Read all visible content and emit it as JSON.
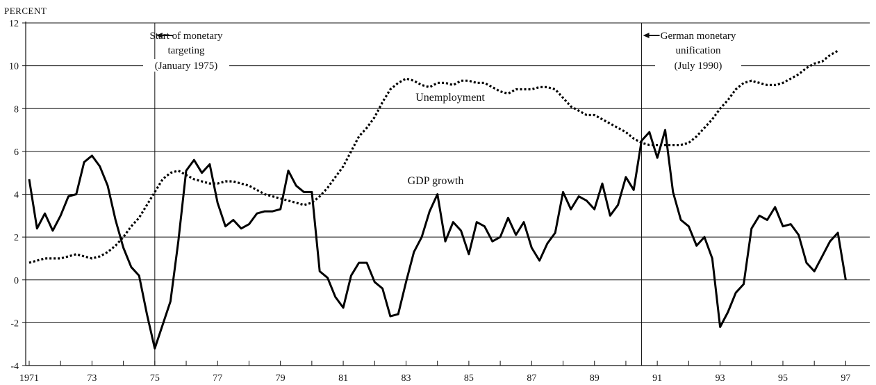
{
  "chart_data": {
    "type": "line",
    "ylabel": "PERCENT",
    "ylim": [
      -4,
      12
    ],
    "yticks": [
      "12",
      "10",
      "8",
      "6",
      "4",
      "2",
      "0",
      "-2",
      "-4"
    ],
    "ytick_values": [
      12,
      10,
      8,
      6,
      4,
      2,
      0,
      -2,
      -4
    ],
    "xlim": [
      1971,
      1997.5
    ],
    "xticks": [
      "1971",
      "73",
      "75",
      "77",
      "79",
      "81",
      "83",
      "85",
      "87",
      "89",
      "91",
      "93",
      "95",
      "97"
    ],
    "xtick_values": [
      1971,
      1973,
      1975,
      1977,
      1979,
      1981,
      1983,
      1985,
      1987,
      1989,
      1991,
      1993,
      1995,
      1997
    ],
    "grid": "horizontal",
    "annotations": [
      {
        "lines": [
          "Start of monetary",
          "targeting",
          "(January 1975)"
        ],
        "x": 1975.0
      },
      {
        "lines": [
          "German monetary",
          "unification",
          "(July 1990)"
        ],
        "x": 1990.5
      }
    ],
    "series": [
      {
        "name": "GDP growth",
        "style": "solid",
        "x": [
          1971.0,
          1971.25,
          1971.5,
          1971.75,
          1972.0,
          1972.25,
          1972.5,
          1972.75,
          1973.0,
          1973.25,
          1973.5,
          1973.75,
          1974.0,
          1974.25,
          1974.5,
          1974.75,
          1975.0,
          1975.25,
          1975.5,
          1975.75,
          1976.0,
          1976.25,
          1976.5,
          1976.75,
          1977.0,
          1977.25,
          1977.5,
          1977.75,
          1978.0,
          1978.25,
          1978.5,
          1978.75,
          1979.0,
          1979.25,
          1979.5,
          1979.75,
          1980.0,
          1980.25,
          1980.5,
          1980.75,
          1981.0,
          1981.25,
          1981.5,
          1981.75,
          1982.0,
          1982.25,
          1982.5,
          1982.75,
          1983.0,
          1983.25,
          1983.5,
          1983.75,
          1984.0,
          1984.25,
          1984.5,
          1984.75,
          1985.0,
          1985.25,
          1985.5,
          1985.75,
          1986.0,
          1986.25,
          1986.5,
          1986.75,
          1987.0,
          1987.25,
          1987.5,
          1987.75,
          1988.0,
          1988.25,
          1988.5,
          1988.75,
          1989.0,
          1989.25,
          1989.5,
          1989.75,
          1990.0,
          1990.25,
          1990.5,
          1990.75,
          1991.0,
          1991.25,
          1991.5,
          1991.75,
          1992.0,
          1992.25,
          1992.5,
          1992.75,
          1993.0,
          1993.25,
          1993.5,
          1993.75,
          1994.0,
          1994.25,
          1994.5,
          1994.75,
          1995.0,
          1995.25,
          1995.5,
          1995.75,
          1996.0,
          1996.25,
          1996.5,
          1996.75
        ],
        "values": [
          4.7,
          2.4,
          3.1,
          2.3,
          3.0,
          3.9,
          4.0,
          5.5,
          5.8,
          5.3,
          4.4,
          2.8,
          1.5,
          0.6,
          0.2,
          -1.6,
          -3.2,
          -2.1,
          -1.0,
          1.8,
          5.1,
          5.6,
          5.0,
          5.4,
          3.6,
          2.5,
          2.8,
          2.4,
          2.6,
          3.1,
          3.2,
          3.2,
          3.3,
          5.1,
          4.4,
          4.1,
          4.1,
          0.4,
          0.1,
          -0.8,
          -1.3,
          0.2,
          0.8,
          0.8,
          -0.1,
          -0.4,
          -1.7,
          -1.6,
          -0.1,
          1.3,
          2.0,
          3.2,
          4.0,
          1.8,
          2.7,
          2.3,
          1.2,
          2.7,
          2.5,
          1.8,
          2.0,
          2.9,
          2.1,
          2.7,
          1.5,
          0.9,
          1.7,
          2.2,
          4.1,
          3.3,
          3.9,
          3.7,
          3.3,
          4.5,
          3.0,
          3.5,
          4.8,
          4.2,
          6.5,
          6.9,
          5.7,
          7.0,
          4.1,
          2.8,
          2.5,
          1.6,
          2.0,
          1.0,
          -2.2,
          -1.5,
          -0.6,
          -0.2,
          2.4,
          3.0,
          2.8,
          3.4,
          2.5,
          2.6,
          2.1,
          0.8,
          0.4,
          1.1,
          1.8,
          2.2
        ],
        "extra": [
          [
            1997.0,
            0.0
          ]
        ]
      },
      {
        "name": "Unemployment",
        "style": "dotted",
        "x": [
          1971.0,
          1971.25,
          1971.5,
          1971.75,
          1972.0,
          1972.25,
          1972.5,
          1972.75,
          1973.0,
          1973.25,
          1973.5,
          1973.75,
          1974.0,
          1974.25,
          1974.5,
          1974.75,
          1975.0,
          1975.25,
          1975.5,
          1975.75,
          1976.0,
          1976.25,
          1976.5,
          1976.75,
          1977.0,
          1977.25,
          1977.5,
          1977.75,
          1978.0,
          1978.25,
          1978.5,
          1978.75,
          1979.0,
          1979.25,
          1979.5,
          1979.75,
          1980.0,
          1980.25,
          1980.5,
          1980.75,
          1981.0,
          1981.25,
          1981.5,
          1981.75,
          1982.0,
          1982.25,
          1982.5,
          1982.75,
          1983.0,
          1983.25,
          1983.5,
          1983.75,
          1984.0,
          1984.25,
          1984.5,
          1984.75,
          1985.0,
          1985.25,
          1985.5,
          1985.75,
          1986.0,
          1986.25,
          1986.5,
          1986.75,
          1987.0,
          1987.25,
          1987.5,
          1987.75,
          1988.0,
          1988.25,
          1988.5,
          1988.75,
          1989.0,
          1989.25,
          1989.5,
          1989.75,
          1990.0,
          1990.25,
          1990.5,
          1990.75,
          1991.0,
          1991.25,
          1991.5,
          1991.75,
          1992.0,
          1992.25,
          1992.5,
          1992.75,
          1993.0,
          1993.25,
          1993.5,
          1993.75,
          1994.0,
          1994.25,
          1994.5,
          1994.75,
          1995.0,
          1995.25,
          1995.5,
          1995.75,
          1996.0,
          1996.25,
          1996.5,
          1996.75
        ],
        "values": [
          0.8,
          0.9,
          1.0,
          1.0,
          1.0,
          1.1,
          1.2,
          1.1,
          1.0,
          1.1,
          1.3,
          1.6,
          2.0,
          2.5,
          2.9,
          3.5,
          4.1,
          4.7,
          5.0,
          5.1,
          4.9,
          4.7,
          4.6,
          4.5,
          4.5,
          4.6,
          4.6,
          4.5,
          4.4,
          4.2,
          4.0,
          3.9,
          3.8,
          3.7,
          3.6,
          3.5,
          3.6,
          3.9,
          4.3,
          4.8,
          5.3,
          6.0,
          6.7,
          7.1,
          7.6,
          8.3,
          8.9,
          9.2,
          9.4,
          9.3,
          9.1,
          9.0,
          9.2,
          9.2,
          9.1,
          9.3,
          9.3,
          9.2,
          9.2,
          9.0,
          8.8,
          8.7,
          8.9,
          8.9,
          8.9,
          9.0,
          9.0,
          8.9,
          8.5,
          8.1,
          7.9,
          7.7,
          7.7,
          7.5,
          7.3,
          7.1,
          6.9,
          6.6,
          6.4,
          6.3,
          6.3,
          6.3,
          6.3,
          6.3,
          6.4,
          6.7,
          7.1,
          7.5,
          8.0,
          8.4,
          8.9,
          9.2,
          9.3,
          9.2,
          9.1,
          9.1,
          9.2,
          9.4,
          9.6,
          9.9,
          10.1,
          10.2,
          10.5,
          10.7
        ],
        "extra": []
      }
    ]
  }
}
